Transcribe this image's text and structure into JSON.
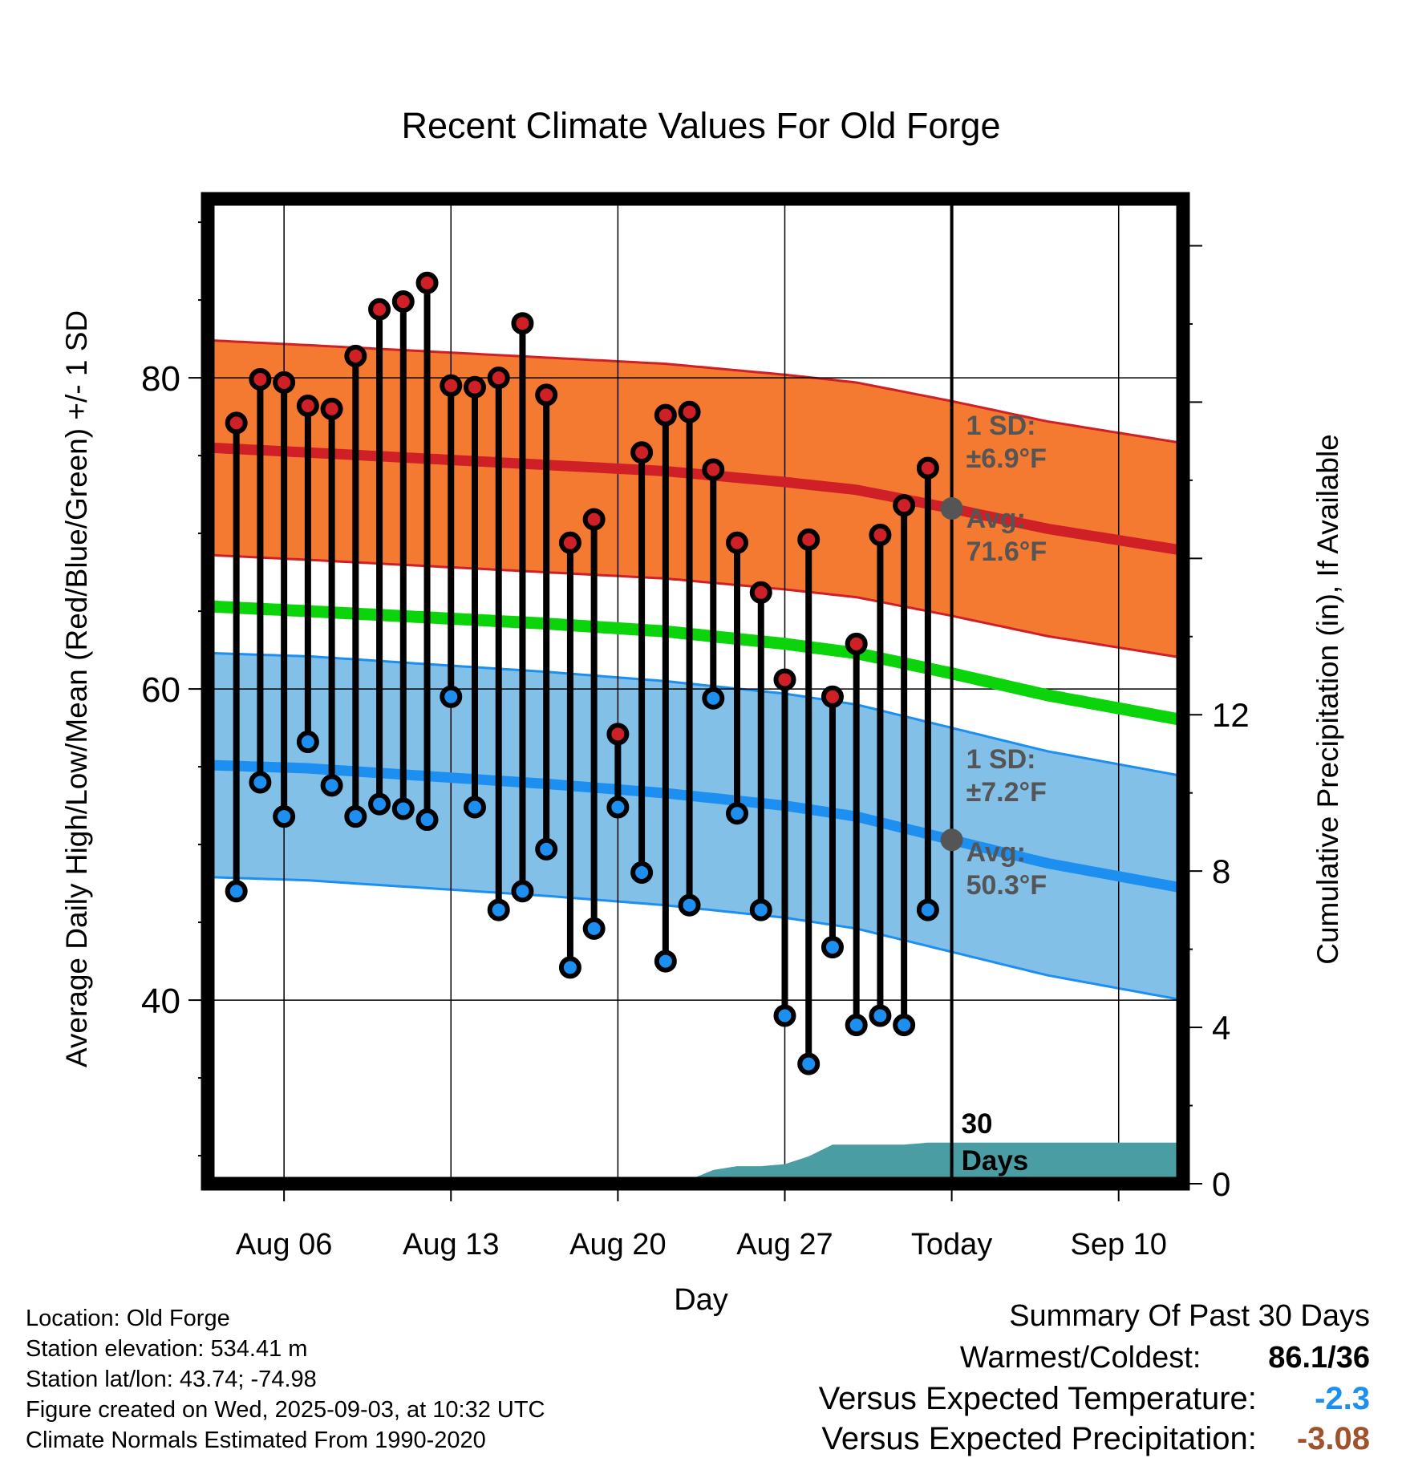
{
  "chart_data": {
    "type": "line",
    "title": "Recent Climate Values For Old Forge",
    "xlabel": "Day",
    "ylabel": "Average Daily High/Low/Mean (Red/Blue/Green) +/- 1 SD",
    "y2label": "Cumulative Precipitation (in), If Available",
    "ylim": [
      28.2,
      91.5
    ],
    "y_ticks": [
      40,
      60,
      80
    ],
    "y2lim": [
      0,
      25.2
    ],
    "y2_ticks": [
      0,
      4,
      8,
      12
    ],
    "x_tick_labels": [
      "Aug 06",
      "Aug 13",
      "Aug 20",
      "Aug 27",
      "Today",
      "Sep 10"
    ],
    "x_tick_days": [
      6,
      13,
      20,
      27,
      34,
      41
    ],
    "xlim": [
      2.8,
      43.7
    ],
    "today_day": 34,
    "today_line_label": [
      "30",
      "Days"
    ],
    "days": [
      4,
      5,
      6,
      7,
      8,
      9,
      10,
      11,
      12,
      13,
      14,
      15,
      16,
      17,
      18,
      19,
      20,
      21,
      22,
      23,
      24,
      25,
      26,
      27,
      28,
      29,
      30,
      31,
      32,
      33
    ],
    "daily_high": [
      77.1,
      79.9,
      79.7,
      78.2,
      78.0,
      81.4,
      84.4,
      84.9,
      86.1,
      79.5,
      79.4,
      80.0,
      83.5,
      78.9,
      69.4,
      70.9,
      57.1,
      75.2,
      77.6,
      77.8,
      74.1,
      69.4,
      66.2,
      60.6,
      69.6,
      59.5,
      62.9,
      69.9,
      71.8,
      74.2
    ],
    "daily_low": [
      47.0,
      54.0,
      51.8,
      56.6,
      53.8,
      51.8,
      52.6,
      52.3,
      51.6,
      59.5,
      52.4,
      45.8,
      47.0,
      49.7,
      42.1,
      44.6,
      52.4,
      48.2,
      42.5,
      46.1,
      59.4,
      52.0,
      45.8,
      39.0,
      35.9,
      43.4,
      38.4,
      39.0,
      38.4,
      45.8
    ],
    "normal_high": {
      "days": [
        3,
        7,
        12,
        17,
        22,
        27,
        30,
        34,
        38,
        43.7
      ],
      "mean": [
        75.5,
        75.2,
        74.8,
        74.4,
        74.0,
        73.3,
        72.8,
        71.6,
        70.3,
        68.9
      ],
      "sd": 6.9
    },
    "normal_low": {
      "days": [
        3,
        7,
        12,
        17,
        22,
        27,
        30,
        34,
        38,
        43.7
      ],
      "mean": [
        55.1,
        54.9,
        54.4,
        53.9,
        53.3,
        52.5,
        51.8,
        50.3,
        48.8,
        47.2
      ],
      "sd": 7.2
    },
    "normal_mean": {
      "days": [
        3,
        7,
        12,
        17,
        22,
        27,
        30,
        34,
        38,
        43.7
      ],
      "values": [
        65.3,
        65.0,
        64.6,
        64.2,
        63.7,
        62.9,
        62.3,
        61.0,
        59.6,
        58.0
      ]
    },
    "precip_cumulative": {
      "days": [
        3,
        19.8,
        20.1,
        23.0,
        24.0,
        25.0,
        26.0,
        27.0,
        28.0,
        29.0,
        30.0,
        31.0,
        32.0,
        33.0,
        34.0,
        43.7
      ],
      "values": [
        0,
        0,
        0.1,
        0.1,
        0.35,
        0.45,
        0.45,
        0.5,
        0.7,
        1.0,
        1.0,
        1.0,
        1.0,
        1.05,
        1.05,
        1.05
      ]
    },
    "annotations": {
      "high_sd_label": [
        "1 SD:",
        "±6.9°F"
      ],
      "high_avg_label": [
        "Avg:",
        "71.6°F"
      ],
      "low_sd_label": [
        "1 SD:",
        "±7.2°F"
      ],
      "low_avg_label": [
        "Avg:",
        "50.3°F"
      ]
    },
    "colors": {
      "high_band": "#f47a32",
      "high_line": "#cf2027",
      "low_band": "#82c0e8",
      "low_line": "#1d8ff0",
      "mean_line": "#0bd40b",
      "precip": "#4a9ea3",
      "high_marker": "#cf2027",
      "low_marker": "#1d8ff0",
      "annotation_text": "#555555"
    }
  },
  "info": {
    "location": "Location: Old Forge",
    "elevation": "Station elevation: 534.41 m",
    "latlon": "Station lat/lon: 43.74; -74.98",
    "created": "Figure created on Wed, 2025-09-03, at 10:32 UTC",
    "normals": "Climate Normals Estimated From 1990-2020"
  },
  "summary": {
    "heading": "Summary Of Past 30 Days",
    "warmest_coldest_label": "Warmest/Coldest:",
    "warmest_coldest_value": "86.1/36",
    "temp_label": "Versus Expected Temperature:",
    "temp_value": "-2.3",
    "temp_color": "#1d8ff0",
    "precip_label": "Versus Expected Precipitation:",
    "precip_value": "-3.08",
    "precip_color": "#a0522d"
  }
}
